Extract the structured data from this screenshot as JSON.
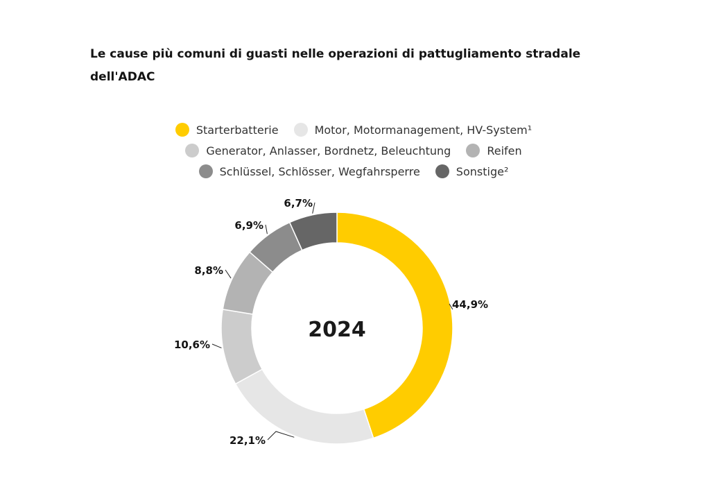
{
  "title": "Le cause più comuni di guasti nelle operazioni di pattugliamento stradale dell'ADAC",
  "center_label": "2024",
  "chart_data": {
    "type": "pie",
    "title": "Le cause più comuni di guasti nelle operazioni di pattugliamento stradale dell'ADAC",
    "center_label": "2024",
    "legend_placement": "top",
    "categories": [
      "Starterbatterie",
      "Motor, Motormanagement, HV-System¹",
      "Generator, Anlasser, Bordnetz, Beleuchtung",
      "Reifen",
      "Schlüssel, Schlösser, Wegfahrsperre",
      "Sonstige²"
    ],
    "values": [
      44.9,
      22.1,
      10.6,
      8.8,
      6.9,
      6.7
    ],
    "labels": [
      "44,9%",
      "22,1%",
      "10,6%",
      "8,8%",
      "6,9%",
      "6,7%"
    ],
    "colors": [
      "#ffcc00",
      "#e6e6e6",
      "#cccccc",
      "#b3b3b3",
      "#8c8c8c",
      "#666666"
    ]
  }
}
